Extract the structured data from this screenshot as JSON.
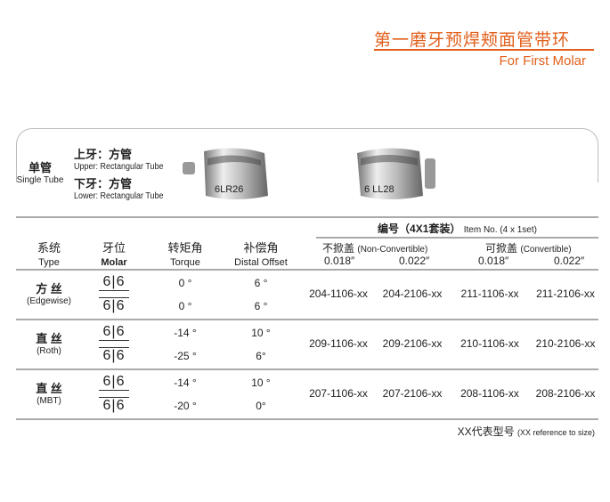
{
  "header": {
    "title_cn": "第一磨牙预焊颊面管带环",
    "title_en": "For First Molar",
    "accent_color": "#e2601c"
  },
  "product": {
    "tube_cn": "单管",
    "tube_en": "Single Tube",
    "upper_cn": "上牙：方管",
    "upper_en": "Upper: Rectangular Tube",
    "lower_cn": "下牙：方管",
    "lower_en": "Lower: Rectangular Tube",
    "band1_marking": "6LR26",
    "band2_marking": "6 LL28"
  },
  "table": {
    "item_no_cn": "编号（4X1套装）",
    "item_no_en": "Item No. (4 x 1set)",
    "nonconv_cn": "不掀盖",
    "nonconv_en": "(Non-Convertible)",
    "conv_cn": "可掀盖",
    "conv_en": "(Convertible)",
    "sizes": [
      "0.018″",
      "0.022″",
      "0.018″",
      "0.022″"
    ],
    "columns": [
      {
        "cn": "系统",
        "en": "Type"
      },
      {
        "cn": "牙位",
        "en": "Molar"
      },
      {
        "cn": "转矩角",
        "en": "Torque"
      },
      {
        "cn": "补偿角",
        "en": "Distal Offset"
      }
    ],
    "rows": [
      {
        "type_cn": "方 丝",
        "type_en": "(Edgewise)",
        "molar": "6|6",
        "torque_upper": "0 °",
        "torque_lower": "0 °",
        "offset_upper": "6 °",
        "offset_lower": "6 °",
        "codes": [
          "204-1106-xx",
          "204-2106-xx",
          "211-1106-xx",
          "211-2106-xx"
        ]
      },
      {
        "type_cn": "直 丝",
        "type_en": "(Roth)",
        "molar": "6|6",
        "torque_upper": "-14 °",
        "torque_lower": "-25 °",
        "offset_upper": "10 °",
        "offset_lower": "6°",
        "codes": [
          "209-1106-xx",
          "209-2106-xx",
          "210-1106-xx",
          "210-2106-xx"
        ]
      },
      {
        "type_cn": "直 丝",
        "type_en": "(MBT)",
        "molar": "6|6",
        "torque_upper": "-14 °",
        "torque_lower": "-20 °",
        "offset_upper": "10 °",
        "offset_lower": "0°",
        "codes": [
          "207-1106-xx",
          "207-2106-xx",
          "208-1106-xx",
          "208-2106-xx"
        ]
      }
    ],
    "footnote_cn": "XX代表型号",
    "footnote_en": "(XX reference to size)"
  }
}
